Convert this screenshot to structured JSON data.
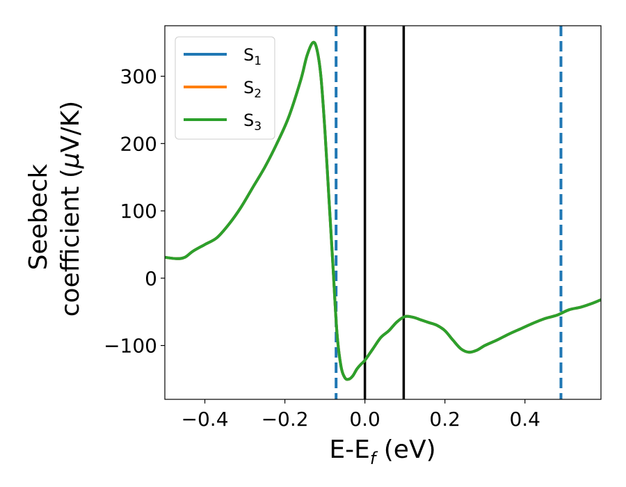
{
  "chart_data": {
    "type": "line",
    "xlabel": "E-E",
    "xlabel_sub": "f",
    "xlabel_unit": " (eV)",
    "ylabel_line1": "Seebeck",
    "ylabel_line2": "coefficient  (",
    "ylabel_mu": "μ",
    "ylabel_line2_end": "V/K)",
    "xlim": [
      -0.5,
      0.59
    ],
    "ylim": [
      -180,
      375
    ],
    "x_ticks": [
      -0.4,
      -0.2,
      0.0,
      0.2,
      0.4
    ],
    "x_tick_labels": [
      "−0.4",
      "−0.2",
      "0.0",
      "0.2",
      "0.4"
    ],
    "y_ticks": [
      -100,
      0,
      100,
      200,
      300
    ],
    "y_tick_labels": [
      "−100",
      "0",
      "100",
      "200",
      "300"
    ],
    "grid": false,
    "legend_position": "top-left",
    "series": [
      {
        "name": "S",
        "subscript": "1",
        "color": "#1f77b4",
        "x": [
          -0.5,
          -0.47,
          -0.45,
          -0.43,
          -0.4,
          -0.37,
          -0.34,
          -0.31,
          -0.28,
          -0.25,
          -0.22,
          -0.19,
          -0.16,
          -0.145,
          -0.13,
          -0.12,
          -0.11,
          -0.1,
          -0.09,
          -0.08,
          -0.07,
          -0.06,
          -0.05,
          -0.04,
          -0.03,
          -0.02,
          -0.01,
          0.0,
          0.02,
          0.04,
          0.06,
          0.08,
          0.1,
          0.12,
          0.14,
          0.16,
          0.18,
          0.2,
          0.22,
          0.24,
          0.26,
          0.28,
          0.3,
          0.33,
          0.36,
          0.39,
          0.42,
          0.45,
          0.48,
          0.51,
          0.54,
          0.57,
          0.59
        ],
        "y": [
          31,
          29,
          31,
          40,
          50,
          60,
          80,
          105,
          135,
          165,
          200,
          240,
          295,
          330,
          350,
          340,
          300,
          220,
          120,
          20,
          -80,
          -130,
          -148,
          -150,
          -145,
          -135,
          -128,
          -122,
          -105,
          -88,
          -78,
          -65,
          -57,
          -58,
          -62,
          -66,
          -70,
          -78,
          -92,
          -105,
          -110,
          -107,
          -100,
          -92,
          -83,
          -75,
          -67,
          -60,
          -55,
          -47,
          -43,
          -37,
          -32
        ]
      },
      {
        "name": "S",
        "subscript": "2",
        "color": "#ff7f0e",
        "x": [
          -0.5,
          -0.47,
          -0.45,
          -0.43,
          -0.4,
          -0.37,
          -0.34,
          -0.31,
          -0.28,
          -0.25,
          -0.22,
          -0.19,
          -0.16,
          -0.145,
          -0.13,
          -0.12,
          -0.11,
          -0.1,
          -0.09,
          -0.08,
          -0.07,
          -0.06,
          -0.05,
          -0.04,
          -0.03,
          -0.02,
          -0.01,
          0.0,
          0.02,
          0.04,
          0.06,
          0.08,
          0.1,
          0.12,
          0.14,
          0.16,
          0.18,
          0.2,
          0.22,
          0.24,
          0.26,
          0.28,
          0.3,
          0.33,
          0.36,
          0.39,
          0.42,
          0.45,
          0.48,
          0.51,
          0.54,
          0.57,
          0.59
        ],
        "y": [
          31,
          29,
          31,
          40,
          50,
          60,
          80,
          105,
          135,
          165,
          200,
          240,
          295,
          330,
          350,
          340,
          300,
          220,
          120,
          20,
          -80,
          -130,
          -148,
          -150,
          -145,
          -135,
          -128,
          -122,
          -105,
          -88,
          -78,
          -65,
          -57,
          -58,
          -62,
          -66,
          -70,
          -78,
          -92,
          -105,
          -110,
          -107,
          -100,
          -92,
          -83,
          -75,
          -67,
          -60,
          -55,
          -47,
          -43,
          -37,
          -32
        ]
      },
      {
        "name": "S",
        "subscript": "3",
        "color": "#2ca02c",
        "x": [
          -0.5,
          -0.47,
          -0.45,
          -0.43,
          -0.4,
          -0.37,
          -0.34,
          -0.31,
          -0.28,
          -0.25,
          -0.22,
          -0.19,
          -0.16,
          -0.145,
          -0.13,
          -0.12,
          -0.11,
          -0.1,
          -0.09,
          -0.08,
          -0.07,
          -0.06,
          -0.05,
          -0.04,
          -0.03,
          -0.02,
          -0.01,
          0.0,
          0.02,
          0.04,
          0.06,
          0.08,
          0.1,
          0.12,
          0.14,
          0.16,
          0.18,
          0.2,
          0.22,
          0.24,
          0.26,
          0.28,
          0.3,
          0.33,
          0.36,
          0.39,
          0.42,
          0.45,
          0.48,
          0.51,
          0.54,
          0.57,
          0.59
        ],
        "y": [
          31,
          29,
          31,
          40,
          50,
          60,
          80,
          105,
          135,
          165,
          200,
          240,
          295,
          330,
          350,
          340,
          300,
          220,
          120,
          20,
          -80,
          -130,
          -148,
          -150,
          -145,
          -135,
          -128,
          -122,
          -105,
          -88,
          -78,
          -65,
          -57,
          -58,
          -62,
          -66,
          -70,
          -78,
          -92,
          -105,
          -110,
          -107,
          -100,
          -92,
          -83,
          -75,
          -67,
          -60,
          -55,
          -47,
          -43,
          -37,
          -32
        ]
      }
    ],
    "vertical_lines": [
      {
        "x": -0.072,
        "color": "#1f77b4",
        "style": "dashed"
      },
      {
        "x": 0.0,
        "color": "#000000",
        "style": "solid"
      },
      {
        "x": 0.097,
        "color": "#000000",
        "style": "solid"
      },
      {
        "x": 0.49,
        "color": "#1f77b4",
        "style": "dashed"
      }
    ]
  }
}
